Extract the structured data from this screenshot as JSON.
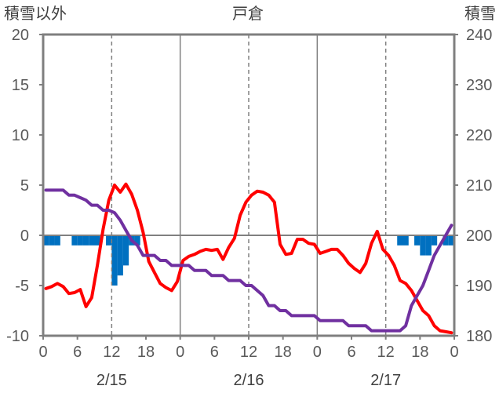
{
  "chart_data": {
    "type": "line",
    "title": "戸倉",
    "ylabel_left": "積雪以外",
    "ylabel_right": "積雪",
    "ylim_left": [
      -10,
      20
    ],
    "ylim_right": [
      180,
      240
    ],
    "yticks_left": [
      "20",
      "15",
      "10",
      "5",
      "0",
      "-5",
      "-10"
    ],
    "yticks_right": [
      "240",
      "230",
      "220",
      "210",
      "200",
      "190",
      "180"
    ],
    "xticks": [
      "0",
      "6",
      "12",
      "18",
      "0",
      "6",
      "12",
      "18",
      "0",
      "6",
      "12",
      "18",
      "0"
    ],
    "dates": [
      "2/15",
      "2/16",
      "2/17"
    ],
    "grid": "vertical",
    "series": [
      {
        "kind": "line",
        "color": "#ff0000",
        "axis": "left",
        "x": [
          0,
          1,
          2,
          3,
          4,
          5,
          6,
          7,
          8,
          9,
          10,
          11,
          12,
          13,
          14,
          15,
          16,
          17,
          18,
          19,
          20,
          21,
          22,
          23,
          24,
          25,
          26,
          27,
          28,
          29,
          30,
          31,
          32,
          33,
          34,
          35,
          36,
          37,
          38,
          39,
          40,
          41,
          42,
          43,
          44,
          45,
          46,
          47,
          48,
          49,
          50,
          51,
          52,
          53,
          54,
          55,
          56,
          57,
          58,
          59,
          60,
          61,
          62,
          63,
          64,
          65,
          66,
          67,
          68,
          69,
          70,
          71
        ],
        "values": [
          -5.3,
          -5.1,
          -4.8,
          -5.1,
          -5.8,
          -5.7,
          -5.4,
          -7.1,
          -6.2,
          -3.0,
          0.6,
          3.5,
          5.0,
          4.3,
          5.1,
          4.1,
          2.5,
          0.3,
          -2.6,
          -3.7,
          -4.8,
          -5.2,
          -5.5,
          -4.6,
          -2.5,
          -2.1,
          -1.9,
          -1.6,
          -1.4,
          -1.5,
          -1.4,
          -2.4,
          -1.2,
          -0.3,
          2.0,
          3.3,
          4.0,
          4.4,
          4.3,
          4.0,
          3.3,
          -0.9,
          -1.9,
          -1.8,
          -0.4,
          -0.4,
          -0.8,
          -0.9,
          -1.8,
          -1.6,
          -1.4,
          -1.4,
          -2.0,
          -2.8,
          -3.3,
          -3.7,
          -2.8,
          -0.8,
          0.4,
          -1.4,
          -2.0,
          -3.0,
          -4.5,
          -4.8,
          -5.5,
          -6.5,
          -7.5,
          -8.0,
          -9.0,
          -9.5,
          -9.6,
          -9.7
        ]
      },
      {
        "kind": "line",
        "color": "#7030a0",
        "axis": "right",
        "x": [
          0,
          1,
          2,
          3,
          4,
          5,
          6,
          7,
          8,
          9,
          10,
          11,
          12,
          13,
          14,
          15,
          16,
          17,
          18,
          19,
          20,
          21,
          22,
          23,
          24,
          25,
          26,
          27,
          28,
          29,
          30,
          31,
          32,
          33,
          34,
          35,
          36,
          37,
          38,
          39,
          40,
          41,
          42,
          43,
          44,
          45,
          46,
          47,
          48,
          49,
          50,
          51,
          52,
          53,
          54,
          55,
          56,
          57,
          58,
          59,
          60,
          61,
          62,
          63,
          64,
          65,
          66,
          67,
          68,
          69,
          70,
          71
        ],
        "values": [
          209,
          209,
          209,
          209,
          208,
          208,
          207.5,
          207,
          206,
          206,
          205,
          205,
          204.5,
          203,
          201,
          199,
          198,
          196,
          196,
          196,
          195,
          195,
          194,
          194,
          194,
          194,
          193,
          193,
          193,
          192,
          192,
          192,
          191,
          191,
          191,
          190,
          190,
          189,
          188,
          186,
          186,
          185,
          185,
          184,
          184,
          184,
          184,
          184,
          183,
          183,
          183,
          183,
          183,
          182,
          182,
          182,
          182,
          181,
          181,
          181,
          181,
          181,
          181,
          182,
          186,
          188,
          190,
          193,
          196,
          198,
          200,
          202
        ]
      },
      {
        "kind": "bar",
        "color": "#0070c0",
        "axis": "left",
        "x": [
          0,
          1,
          2,
          3,
          4,
          5,
          6,
          7,
          8,
          9,
          10,
          11,
          12,
          13,
          14,
          15,
          16,
          17,
          18,
          19,
          20,
          21,
          22,
          23,
          24,
          25,
          26,
          27,
          28,
          29,
          30,
          31,
          32,
          33,
          34,
          35,
          36,
          37,
          38,
          39,
          40,
          41,
          42,
          43,
          44,
          45,
          46,
          47,
          48,
          49,
          50,
          51,
          52,
          53,
          54,
          55,
          56,
          57,
          58,
          59,
          60,
          61,
          62,
          63,
          64,
          65,
          66,
          67,
          68,
          69,
          70,
          71
        ],
        "values": [
          -1,
          -1,
          -1,
          0,
          0,
          -1,
          -1,
          -1,
          -1,
          -1,
          0,
          -1,
          -5,
          -4,
          -3,
          -1,
          -1,
          0,
          0,
          0,
          0,
          0,
          0,
          0,
          0,
          0,
          0,
          0,
          0,
          0,
          0,
          0,
          0,
          0,
          0,
          0,
          0,
          0,
          0,
          0,
          0,
          0,
          0,
          0,
          0,
          0,
          0,
          0,
          0,
          0,
          0,
          0,
          0,
          0,
          0,
          0,
          0,
          0,
          0,
          0,
          0,
          0,
          -1,
          -1,
          0,
          -1,
          -2,
          -2,
          -1,
          0,
          -1,
          -1
        ]
      }
    ]
  }
}
